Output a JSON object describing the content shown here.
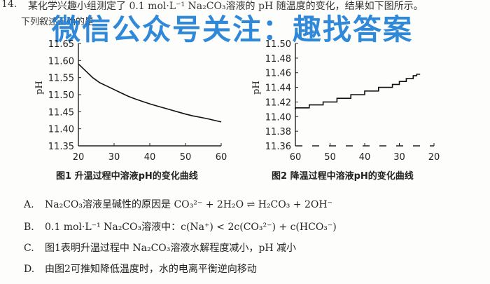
{
  "question": {
    "number": "14.",
    "stem_line1": "某化学兴趣小组测定了 0.1 mol·L⁻¹ Na₂CO₃溶液的 pH 随温度的变化，结果如下图所示。",
    "stem_line2": "下列叙述正确的是"
  },
  "watermark": "微信公众号关注：趣找答案",
  "figures": [
    {
      "caption": "图1 升温过程中溶液pH的变化曲线"
    },
    {
      "caption": "图2 降温过程中溶液pH的变化曲线"
    }
  ],
  "chart_data": [
    {
      "type": "line",
      "title": "图1 升温过程中溶液pH的变化曲线",
      "xlabel": "",
      "ylabel": "pH",
      "xlim": [
        20,
        60
      ],
      "ylim": [
        11.35,
        11.65
      ],
      "x_ticks": [
        "20",
        "30",
        "40",
        "50",
        "60"
      ],
      "y_ticks": [
        "11.65",
        "11.60",
        "11.55",
        "11.50",
        "11.45",
        "11.40",
        "11.35"
      ],
      "x": [
        20,
        22,
        24,
        26,
        28,
        30,
        32,
        34,
        36,
        38,
        40,
        42,
        44,
        46,
        48,
        50,
        52,
        54,
        56,
        58,
        60
      ],
      "values": [
        11.59,
        11.57,
        11.55,
        11.535,
        11.525,
        11.515,
        11.505,
        11.495,
        11.487,
        11.48,
        11.473,
        11.467,
        11.461,
        11.455,
        11.449,
        11.443,
        11.438,
        11.434,
        11.43,
        11.425,
        11.42
      ]
    },
    {
      "type": "line",
      "title": "图2 降温过程中溶液pH的变化曲线",
      "xlabel": "",
      "ylabel": "pH",
      "xlim": [
        60,
        20
      ],
      "ylim": [
        11.36,
        11.5
      ],
      "x_ticks": [
        "60",
        "50",
        "40",
        "30",
        "20"
      ],
      "y_ticks": [
        "11.50",
        "11.48",
        "11.46",
        "11.44",
        "11.42",
        "11.40",
        "11.38",
        "11.36"
      ],
      "x": [
        60,
        56,
        52,
        48,
        44,
        40,
        36,
        32,
        30,
        28,
        26,
        25,
        24
      ],
      "values": [
        11.41,
        11.412,
        11.416,
        11.42,
        11.425,
        11.43,
        11.435,
        11.44,
        11.444,
        11.448,
        11.452,
        11.456,
        11.458
      ]
    }
  ],
  "options": [
    {
      "label": "A.",
      "text": "Na₂CO₃溶液呈碱性的原因是 CO₃²⁻ + 2H₂O ⇌ H₂CO₃ + 2OH⁻"
    },
    {
      "label": "B.",
      "text": "0.1 mol·L⁻¹ Na₂CO₃溶液中：c(Na⁺) < 2c(CO₃²⁻) + c(HCO₃⁻)"
    },
    {
      "label": "C.",
      "text": "图1表明升温过程中 Na₂CO₃溶液水解程度减小，pH 减小"
    },
    {
      "label": "D.",
      "text": "由图2可推知降低温度时，水的电离平衡逆向移动"
    }
  ]
}
